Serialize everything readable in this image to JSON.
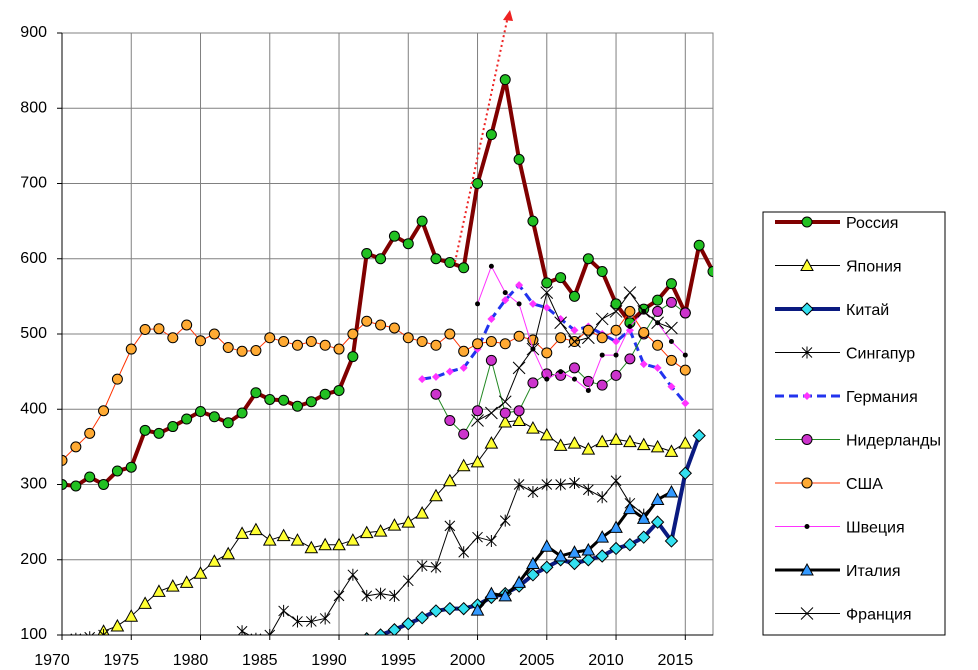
{
  "chart_data": {
    "type": "line",
    "x": [
      1970,
      1971,
      1972,
      1973,
      1974,
      1975,
      1976,
      1977,
      1978,
      1979,
      1980,
      1981,
      1982,
      1983,
      1984,
      1985,
      1986,
      1987,
      1988,
      1989,
      1990,
      1991,
      1992,
      1993,
      1994,
      1995,
      1996,
      1997,
      1998,
      1999,
      2000,
      2001,
      2002,
      2003,
      2004,
      2005,
      2006,
      2007,
      2008,
      2009,
      2010,
      2011,
      2012,
      2013,
      2014,
      2015,
      2016,
      2017
    ],
    "xlim": [
      1970,
      2017
    ],
    "xticks": [
      1970,
      1975,
      1980,
      1985,
      1990,
      1995,
      2000,
      2005,
      2010,
      2015
    ],
    "ylim": [
      100,
      900
    ],
    "yticks": [
      100,
      200,
      300,
      400,
      500,
      600,
      700,
      800,
      900
    ],
    "grid": true,
    "legend": "right",
    "series": [
      {
        "name": "Россия",
        "color": "#800000",
        "line_width": 4,
        "marker": "circle",
        "marker_color": "#22c022",
        "values": [
          300,
          298,
          310,
          300,
          318,
          323,
          372,
          368,
          377,
          387,
          397,
          390,
          382,
          395,
          422,
          413,
          412,
          404,
          410,
          420,
          425,
          470,
          607,
          600,
          630,
          620,
          650,
          600,
          595,
          588,
          700,
          765,
          838,
          732,
          650,
          568,
          575,
          550,
          600,
          583,
          540,
          515,
          533,
          545,
          567,
          528,
          618,
          583
        ]
      },
      {
        "name": "Япония",
        "color": "#000000",
        "line_width": 1,
        "marker": "triangle",
        "marker_color": "#ffff33",
        "values": [
          null,
          null,
          null,
          105,
          112,
          125,
          142,
          158,
          165,
          170,
          182,
          198,
          208,
          235,
          240,
          226,
          232,
          226,
          216,
          220,
          220,
          226,
          236,
          238,
          246,
          250,
          262,
          285,
          305,
          325,
          330,
          355,
          383,
          385,
          375,
          366,
          352,
          355,
          347,
          357,
          360,
          357,
          353,
          350,
          344,
          355,
          null,
          null
        ]
      },
      {
        "name": "Китай",
        "color": "#0a1a80",
        "line_width": 4,
        "marker": "diamond",
        "marker_color": "#33e0f0",
        "values": [
          null,
          null,
          null,
          null,
          null,
          null,
          null,
          null,
          null,
          null,
          null,
          null,
          null,
          null,
          null,
          null,
          null,
          null,
          null,
          null,
          90,
          90,
          95,
          100,
          107,
          115,
          123,
          132,
          135,
          135,
          140,
          150,
          155,
          165,
          180,
          190,
          200,
          195,
          200,
          205,
          215,
          220,
          230,
          250,
          225,
          315,
          365,
          null
        ]
      },
      {
        "name": "Сингапур",
        "color": "#000000",
        "line_width": 1,
        "marker": "asterisk",
        "marker_color": "#000000",
        "values": [
          93,
          95,
          97,
          100,
          null,
          null,
          null,
          null,
          null,
          null,
          null,
          null,
          null,
          105,
          95,
          100,
          132,
          118,
          118,
          122,
          152,
          180,
          152,
          155,
          152,
          172,
          192,
          190,
          245,
          210,
          230,
          225,
          252,
          300,
          290,
          300,
          300,
          302,
          293,
          283,
          305,
          275,
          260,
          null,
          null,
          null,
          null,
          null
        ]
      },
      {
        "name": "Германия",
        "color": "#2233ee",
        "line_width": 3,
        "dash": true,
        "marker": "diamond",
        "marker_color": "#ff33ff",
        "values": [
          null,
          null,
          null,
          null,
          null,
          null,
          null,
          null,
          null,
          null,
          null,
          null,
          null,
          null,
          null,
          null,
          null,
          null,
          null,
          null,
          null,
          null,
          null,
          null,
          null,
          null,
          440,
          443,
          450,
          455,
          480,
          520,
          545,
          565,
          540,
          535,
          520,
          505,
          510,
          500,
          490,
          505,
          460,
          455,
          430,
          408,
          null,
          null
        ]
      },
      {
        "name": "Нидерланды",
        "color": "#228822",
        "line_width": 1,
        "marker": "circle",
        "marker_color": "#cc33cc",
        "values": [
          null,
          null,
          null,
          null,
          null,
          null,
          null,
          null,
          null,
          null,
          null,
          null,
          null,
          null,
          null,
          null,
          null,
          null,
          null,
          null,
          null,
          null,
          null,
          null,
          null,
          null,
          null,
          420,
          385,
          367,
          398,
          465,
          395,
          398,
          435,
          447,
          445,
          455,
          437,
          432,
          445,
          467,
          500,
          530,
          542,
          528,
          null,
          null
        ]
      },
      {
        "name": "США",
        "color": "#ff3300",
        "line_width": 1,
        "marker": "circle",
        "marker_color": "#ffaa33",
        "values": [
          332,
          350,
          368,
          398,
          440,
          480,
          506,
          507,
          495,
          512,
          491,
          500,
          482,
          477,
          478,
          495,
          490,
          485,
          490,
          485,
          480,
          500,
          517,
          512,
          508,
          495,
          490,
          485,
          500,
          477,
          487,
          490,
          487,
          497,
          492,
          475,
          495,
          490,
          505,
          495,
          505,
          530,
          502,
          485,
          465,
          452,
          null,
          null
        ]
      },
      {
        "name": "Швеция",
        "color": "#ff33ff",
        "line_width": 1,
        "marker": "dot",
        "marker_color": "#000000",
        "values": [
          null,
          null,
          null,
          null,
          null,
          null,
          null,
          null,
          null,
          null,
          null,
          null,
          null,
          null,
          null,
          null,
          null,
          null,
          null,
          null,
          null,
          null,
          null,
          null,
          null,
          null,
          null,
          null,
          null,
          null,
          540,
          590,
          555,
          540,
          480,
          440,
          450,
          440,
          425,
          472,
          472,
          510,
          530,
          515,
          490,
          472,
          null,
          null
        ]
      },
      {
        "name": "Италия",
        "color": "#000000",
        "line_width": 3,
        "marker": "triangle",
        "marker_color": "#3399ff",
        "values": [
          null,
          null,
          null,
          null,
          null,
          null,
          null,
          null,
          null,
          null,
          null,
          null,
          null,
          null,
          null,
          null,
          null,
          null,
          null,
          null,
          null,
          null,
          null,
          null,
          null,
          null,
          null,
          null,
          null,
          null,
          133,
          155,
          152,
          170,
          195,
          218,
          205,
          210,
          213,
          230,
          243,
          268,
          255,
          280,
          290,
          null,
          null,
          null
        ]
      },
      {
        "name": "Франция",
        "color": "#000000",
        "line_width": 1,
        "marker": "cross",
        "marker_color": "#000000",
        "values": [
          null,
          null,
          null,
          null,
          null,
          null,
          null,
          null,
          null,
          null,
          null,
          null,
          null,
          null,
          null,
          null,
          null,
          null,
          null,
          null,
          null,
          null,
          null,
          null,
          null,
          null,
          null,
          null,
          null,
          null,
          385,
          395,
          410,
          455,
          480,
          555,
          515,
          490,
          495,
          520,
          530,
          555,
          530,
          515,
          508,
          null,
          null,
          null
        ]
      }
    ]
  }
}
